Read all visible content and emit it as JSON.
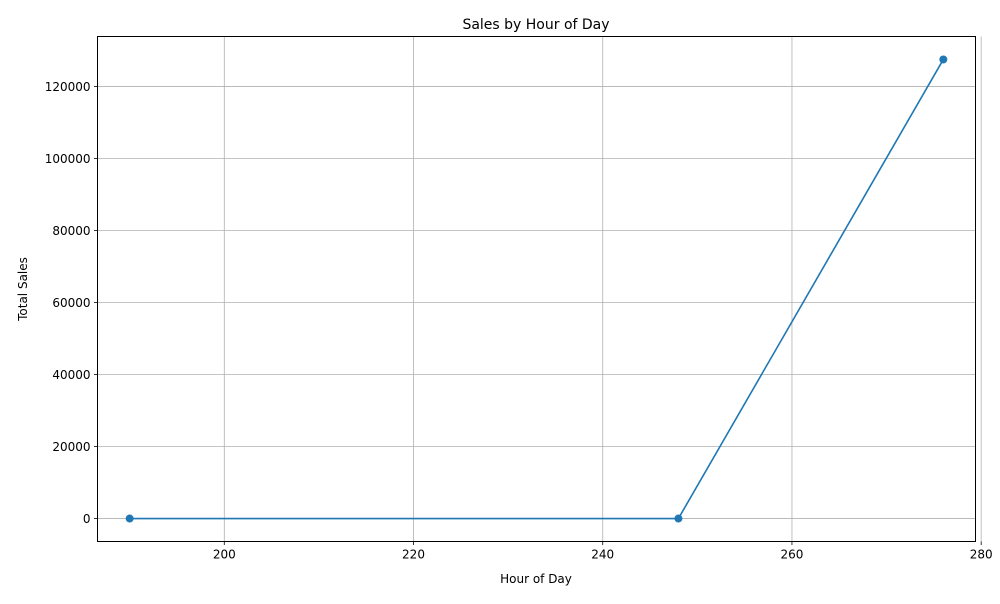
{
  "chart_data": {
    "type": "line",
    "title": "Sales by Hour of Day",
    "xlabel": "Hour of Day",
    "ylabel": "Total Sales",
    "x": [
      190,
      248,
      276
    ],
    "series": [
      {
        "values": [
          0,
          0,
          127500
        ],
        "color": "#1f77b4",
        "marker": "circle"
      }
    ],
    "xlim": [
      186.6,
      279.4
    ],
    "ylim": [
      -6375,
      133875
    ],
    "xticks": [
      200,
      220,
      240,
      260,
      280
    ],
    "yticks": [
      0,
      20000,
      40000,
      60000,
      80000,
      100000,
      120000
    ],
    "grid": true,
    "legend": "none"
  }
}
